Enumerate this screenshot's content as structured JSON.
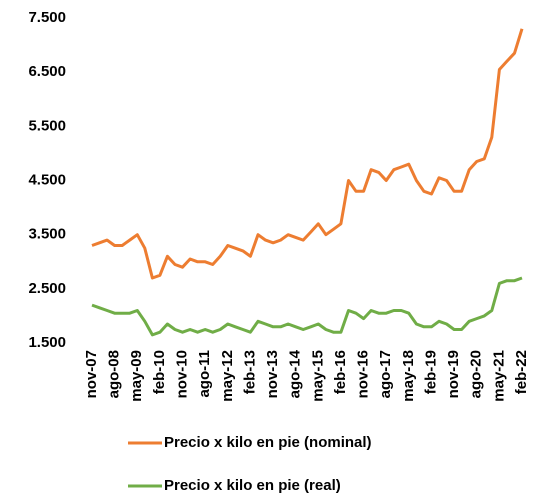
{
  "chart_data": {
    "type": "line",
    "categories": [
      "nov-07",
      null,
      null,
      "ago-08",
      null,
      null,
      "may-09",
      null,
      null,
      "feb-10",
      null,
      null,
      "nov-10",
      null,
      null,
      "ago-11",
      null,
      null,
      "may-12",
      null,
      null,
      "feb-13",
      null,
      null,
      "nov-13",
      null,
      null,
      "ago-14",
      null,
      null,
      "may-15",
      null,
      null,
      "feb-16",
      null,
      null,
      "nov-16",
      null,
      null,
      "ago-17",
      null,
      null,
      "may-18",
      null,
      null,
      "feb-19",
      null,
      null,
      "nov-19",
      null,
      null,
      "ago-20",
      null,
      null,
      "may-21",
      null,
      null,
      "feb-22"
    ],
    "series": [
      {
        "name": "Precio x kilo en pie (nominal)",
        "color": "#ed7d31",
        "values": [
          3300,
          3350,
          3400,
          3300,
          3300,
          3400,
          3500,
          3250,
          2700,
          2750,
          3100,
          2950,
          2900,
          3050,
          3000,
          3000,
          2950,
          3100,
          3300,
          3250,
          3200,
          3100,
          3500,
          3400,
          3350,
          3400,
          3500,
          3450,
          3400,
          3550,
          3700,
          3500,
          3600,
          3700,
          4500,
          4300,
          4300,
          4700,
          4650,
          4500,
          4700,
          4750,
          4800,
          4500,
          4300,
          4250,
          4550,
          4500,
          4300,
          4300,
          4700,
          4850,
          4900,
          5300,
          6550,
          6700,
          6850,
          7300
        ]
      },
      {
        "name": "Precio x kilo en pie (real)",
        "color": "#70ad47",
        "values": [
          2200,
          2150,
          2100,
          2050,
          2050,
          2050,
          2100,
          1900,
          1650,
          1700,
          1850,
          1750,
          1700,
          1750,
          1700,
          1750,
          1700,
          1750,
          1850,
          1800,
          1750,
          1700,
          1900,
          1850,
          1800,
          1800,
          1850,
          1800,
          1750,
          1800,
          1850,
          1750,
          1700,
          1700,
          2100,
          2050,
          1950,
          2100,
          2050,
          2050,
          2100,
          2100,
          2050,
          1850,
          1800,
          1800,
          1900,
          1850,
          1750,
          1750,
          1900,
          1950,
          2000,
          2100,
          2600,
          2650,
          2650,
          2700
        ]
      }
    ],
    "ylim": [
      1500,
      7500
    ],
    "yticks": [
      {
        "value": 1500,
        "label": "1.500"
      },
      {
        "value": 2500,
        "label": "2.500"
      },
      {
        "value": 3500,
        "label": "3.500"
      },
      {
        "value": 4500,
        "label": "4.500"
      },
      {
        "value": 5500,
        "label": "5.500"
      },
      {
        "value": 6500,
        "label": "6.500"
      },
      {
        "value": 7500,
        "label": "7.500"
      }
    ],
    "grid": false,
    "legend": "bottom"
  }
}
